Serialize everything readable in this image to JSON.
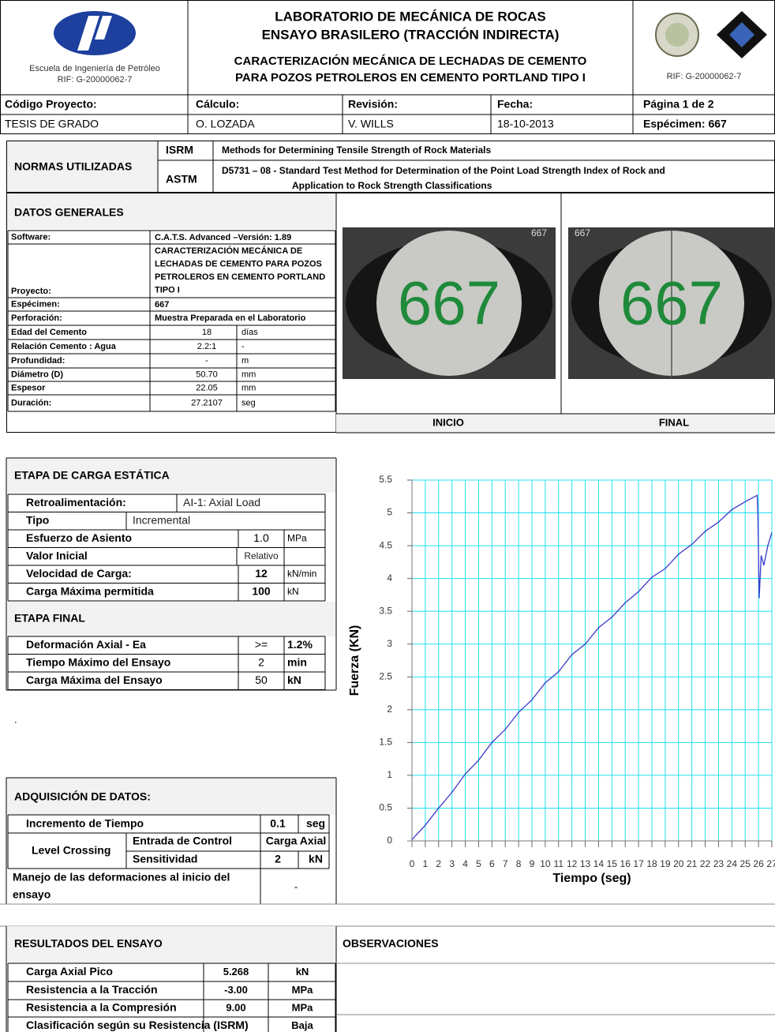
{
  "header": {
    "school": "Escuela de Ingeniería de Petróleo",
    "rif_left": "RIF: G-20000062-7",
    "lab": "LABORATORIO DE MECÁNICA DE ROCAS",
    "test": "ENSAYO BRASILERO (TRACCIÓN INDIRECTA)",
    "project": [
      "CARACTERIZACIÓN MECÁNICA DE LECHADAS DE CEMENTO",
      "PARA POZOS PETROLEROS EN CEMENTO PORTLAND TIPO I"
    ],
    "rif_right": "RIF: G-20000062-7"
  },
  "info": {
    "labels": [
      "Código Proyecto:",
      "Cálculo:",
      "Revisión:",
      "Fecha:",
      "Página 1 de 2"
    ],
    "values": [
      "TESIS DE GRADO",
      "O. LOZADA",
      "V. WILLS",
      "18-10-2013",
      "Espécimen: 667"
    ]
  },
  "normas": {
    "title": "NORMAS UTILIZADAS",
    "rows": [
      {
        "code": "ISRM",
        "text": [
          "Methods for Determining Tensile Strength of Rock Materials"
        ]
      },
      {
        "code": "ASTM",
        "text": [
          "D5731 – 08 -  Standard Test Method for Determination of the Point Load Strength Index of Rock and",
          "Application to Rock Strength Classifications"
        ]
      }
    ]
  },
  "datos_generales": {
    "title": "DATOS GENERALES",
    "rows": [
      {
        "label": "Software:",
        "value": [
          "C.A.T.S. Advanced –Versión: 1.89"
        ]
      },
      {
        "label": "Proyecto:",
        "value": [
          "CARACTERIZACIÓN MECÁNICA DE",
          "LECHADAS  DE CEMENTO PARA POZOS",
          "PETROLEROS EN CEMENTO PORTLAND",
          "TIPO I"
        ]
      },
      {
        "label": "Espécimen:",
        "value": [
          "667"
        ]
      },
      {
        "label": "Perforación:",
        "value": [
          "Muestra Preparada en el Laboratorio"
        ]
      },
      {
        "label": "Edad del Cemento",
        "value": 18,
        "unit": "días"
      },
      {
        "label": "Relación Cemento : Agua",
        "value": "2.2:1",
        "unit": "-"
      },
      {
        "label": "Profundidad:",
        "value": "-",
        "unit": "m"
      },
      {
        "label": "Diámetro (D)",
        "value": "50.70",
        "unit": "mm"
      },
      {
        "label": "Espesor",
        "value": 22.05,
        "unit": "mm"
      },
      {
        "label": "Duración:",
        "value": 27.2107,
        "unit": "seg"
      }
    ]
  },
  "photos": {
    "labels": [
      "INICIO",
      "FINAL"
    ],
    "specimen_marks": [
      "667",
      "667"
    ],
    "corner_marks": [
      "667",
      "667"
    ]
  },
  "etapa_carga": {
    "title": "ETAPA DE CARGA ESTÁTICA",
    "rows": [
      {
        "label": "Retroalimentación:",
        "value": "AI-1: Axial Load"
      },
      {
        "label": "Tipo",
        "value": "Incremental"
      },
      {
        "label": "Esfuerzo de Asiento",
        "value": "1.0",
        "unit": "MPa"
      },
      {
        "label": "Valor Inicial",
        "value": "Relativo"
      },
      {
        "label": "Velocidad de Carga:",
        "value": 12,
        "unit": "kN/min"
      },
      {
        "label": "Carga Máxima permitida",
        "value": 100,
        "unit": "kN"
      }
    ]
  },
  "etapa_final": {
    "title": "ETAPA FINAL",
    "rows": [
      {
        "label": "Deformación Axial - Ea",
        "value": ">=",
        "unit": "1.2%"
      },
      {
        "label": "Tiempo Máximo del Ensayo",
        "value": 2,
        "unit": "min"
      },
      {
        "label": "Carga  Máxima del Ensayo",
        "value": 50,
        "unit": "kN"
      }
    ]
  },
  "note": ".",
  "adquisicion": {
    "title": "ADQUISICIÓN DE DATOS:",
    "increment": {
      "label": "Incremento de Tiempo",
      "value": 0.1,
      "unit": "seg"
    },
    "level_crossing": {
      "label": "Level Crossing",
      "rows": [
        {
          "label": "Entrada de Control",
          "value": "Carga Axial"
        },
        {
          "label": "Sensitividad",
          "value": 2,
          "unit": "kN"
        }
      ]
    },
    "manejo": {
      "label": [
        "Manejo de las deformaciones al inicio del",
        "ensayo"
      ],
      "value": "-"
    }
  },
  "resultados": {
    "title": "RESULTADOS DEL ENSAYO",
    "rows": [
      {
        "label": "Carga Axial Pico",
        "value": 5.268,
        "unit": "kN"
      },
      {
        "label": "Resistencia a la Tracción",
        "value": "-3.00",
        "unit": "MPa"
      },
      {
        "label": "Resistencia a la Compresión",
        "value": "9.00",
        "unit": "MPa"
      },
      {
        "label": "Clasificación según su Resistencia (ISRM)",
        "value": "Baja"
      }
    ]
  },
  "observaciones": {
    "title": "OBSERVACIONES"
  },
  "chart_data": {
    "type": "line",
    "x_label": "Tiempo (seg)",
    "y_label": "Fuerza (KN)",
    "x": [
      0,
      1,
      2,
      3,
      4,
      5,
      6,
      7,
      8,
      9,
      10,
      11,
      12,
      13,
      14,
      15,
      16,
      17,
      18,
      19,
      20,
      21,
      22,
      23,
      24,
      25,
      25.9,
      25.95,
      26.05,
      26.2,
      26.4,
      26.7,
      27
    ],
    "values": [
      0.02,
      0.24,
      0.5,
      0.74,
      1.02,
      1.23,
      1.5,
      1.7,
      1.96,
      2.15,
      2.41,
      2.58,
      2.84,
      3.0,
      3.25,
      3.41,
      3.63,
      3.8,
      4.02,
      4.15,
      4.37,
      4.52,
      4.72,
      4.86,
      5.05,
      5.17,
      5.268,
      5.0,
      3.7,
      4.35,
      4.2,
      4.5,
      4.7
    ],
    "color": "#3a3acc",
    "xlim": [
      0,
      27
    ],
    "ylim": [
      0,
      5.5
    ],
    "xticks": [
      0,
      1,
      2,
      3,
      4,
      5,
      6,
      7,
      8,
      9,
      10,
      11,
      12,
      13,
      14,
      15,
      16,
      17,
      18,
      19,
      20,
      21,
      22,
      23,
      24,
      25,
      26,
      27
    ],
    "yticks": [
      0,
      0.5,
      1,
      1.5,
      2,
      2.5,
      3,
      3.5,
      4,
      4.5,
      5,
      5.5
    ],
    "grid": true,
    "grid_color": "#20e0f0"
  }
}
